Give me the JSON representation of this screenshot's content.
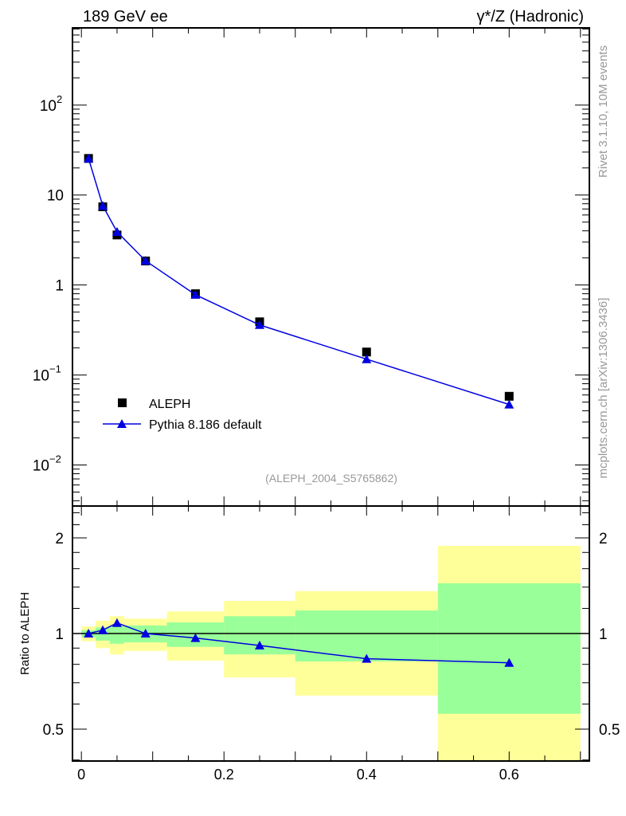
{
  "header": {
    "left_title": "189 GeV ee",
    "right_title": "γ*/Z (Hadronic)"
  },
  "side_labels": {
    "rivet": "Rivet 3.1.10,  10M events",
    "mcplots": "mcplots.cern.ch [arXiv:1306.3436]"
  },
  "analysis_id": "(ALEPH_2004_S5765862)",
  "colors": {
    "data": "#000000",
    "mc": "#0000e0",
    "band_inner": "#99ff99",
    "band_outer": "#ffff99"
  },
  "chart_data": [
    {
      "type": "scatter",
      "panel": "main",
      "yscale": "log",
      "xlim": [
        -0.0125,
        0.7125
      ],
      "ylim": [
        0.0035,
        720
      ],
      "xlabel": "",
      "ylabel": "",
      "y_tick_labels": [
        {
          "value": 100,
          "base": "10",
          "exp": "2"
        },
        {
          "value": 10,
          "base": "10",
          "exp": ""
        },
        {
          "value": 1,
          "base": "1",
          "exp": ""
        },
        {
          "value": 0.1,
          "base": "10",
          "exp": "−1"
        },
        {
          "value": 0.01,
          "base": "10",
          "exp": "−2"
        }
      ],
      "legend_position": "bottom-left",
      "series": [
        {
          "name": "ALEPH",
          "marker": "square",
          "x": [
            0.01,
            0.03,
            0.05,
            0.09,
            0.16,
            0.25,
            0.4,
            0.6
          ],
          "y": [
            25.5,
            7.4,
            3.6,
            1.85,
            0.8,
            0.39,
            0.18,
            0.058
          ]
        },
        {
          "name": "Pythia 8.186 default",
          "marker": "triangle",
          "x": [
            0.01,
            0.03,
            0.05,
            0.09,
            0.16,
            0.25,
            0.4,
            0.6
          ],
          "y": [
            25.5,
            7.6,
            3.9,
            1.86,
            0.78,
            0.36,
            0.15,
            0.047
          ]
        }
      ]
    },
    {
      "type": "line",
      "panel": "ratio",
      "yscale": "log",
      "ylabel": "Ratio to ALEPH",
      "xlim": [
        -0.0125,
        0.7125
      ],
      "ylim": [
        0.397,
        2.52
      ],
      "x_ticks": [
        0,
        0.2,
        0.4,
        0.6
      ],
      "x_tick_labels": [
        "0",
        "0.2",
        "0.4",
        "0.6"
      ],
      "y_ticks": [
        0.5,
        1,
        2
      ],
      "y_tick_labels": [
        "0.5",
        "1",
        "2"
      ],
      "bands": {
        "edges": [
          0,
          0.02,
          0.04,
          0.06,
          0.12,
          0.2,
          0.3,
          0.5,
          0.7
        ],
        "inner_low": [
          0.973,
          0.95,
          0.929,
          0.938,
          0.908,
          0.86,
          0.817,
          0.559
        ],
        "inner_high": [
          1.025,
          1.045,
          1.06,
          1.06,
          1.084,
          1.134,
          1.182,
          1.439
        ],
        "outer_low": [
          0.946,
          0.9,
          0.86,
          0.882,
          0.822,
          0.728,
          0.638,
          0.35
        ],
        "outer_high": [
          1.053,
          1.097,
          1.134,
          1.114,
          1.174,
          1.267,
          1.36,
          1.888
        ]
      },
      "series": [
        {
          "name": "Pythia 8.186 default / ALEPH",
          "x": [
            0.01,
            0.03,
            0.05,
            0.09,
            0.16,
            0.25,
            0.4,
            0.6
          ],
          "y": [
            1.0,
            1.025,
            1.08,
            1.0,
            0.968,
            0.917,
            0.833,
            0.809
          ]
        }
      ]
    }
  ]
}
